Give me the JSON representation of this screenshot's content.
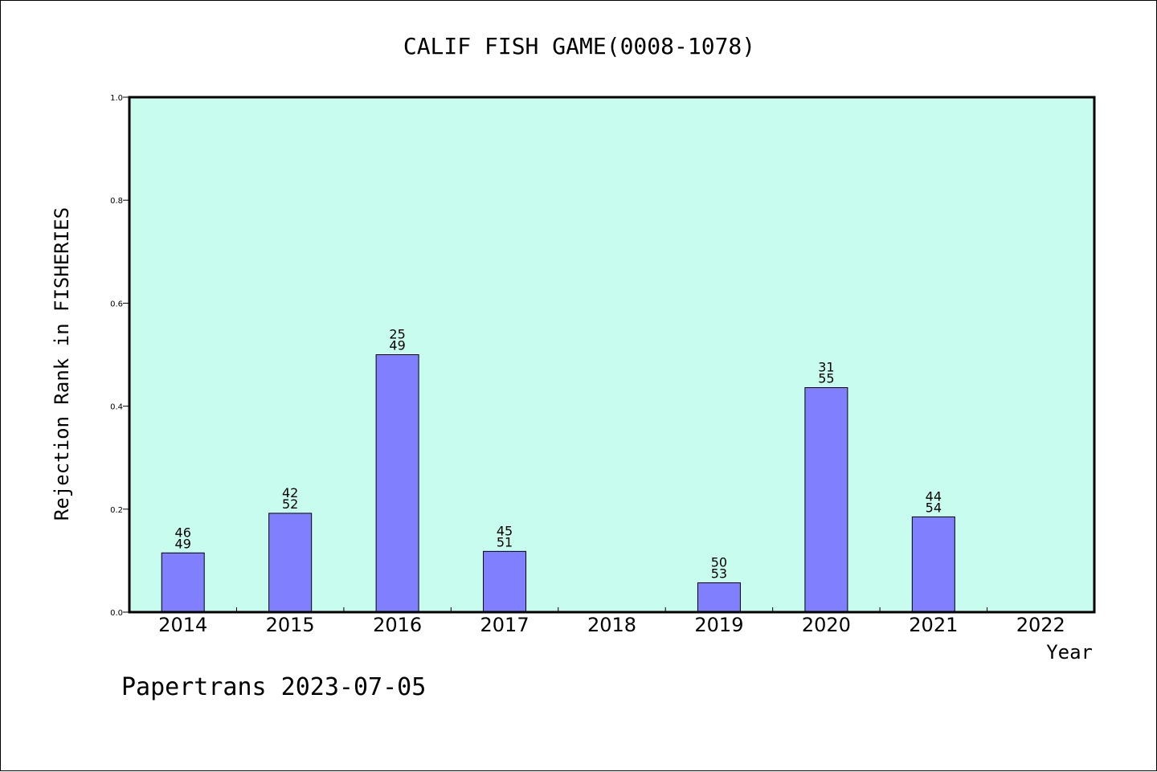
{
  "chart_data": {
    "type": "bar",
    "title": "CALIF FISH GAME(0008-1078)",
    "xlabel": "Year",
    "ylabel": "Rejection Rank in FISHERIES",
    "ylim": [
      0,
      1.0
    ],
    "yticks": [
      "0.0",
      "0.2",
      "0.4",
      "0.6",
      "0.8",
      "1.0"
    ],
    "categories": [
      "2014",
      "2015",
      "2016",
      "2017",
      "2018",
      "2019",
      "2020",
      "2021",
      "2022"
    ],
    "values": [
      0.115,
      0.192,
      0.5,
      0.118,
      0,
      0.057,
      0.436,
      0.185,
      0
    ],
    "labels_top": [
      "46",
      "42",
      "25",
      "45",
      "",
      "50",
      "31",
      "44",
      ""
    ],
    "labels_bottom": [
      "49",
      "52",
      "49",
      "51",
      "",
      "53",
      "55",
      "54",
      ""
    ],
    "grid": false,
    "colors": {
      "plot_background": "#c8fcee",
      "bar_fill": "#8080ff",
      "bar_stroke": "#000000"
    }
  },
  "footer": {
    "text": "Papertrans 2023-07-05"
  }
}
